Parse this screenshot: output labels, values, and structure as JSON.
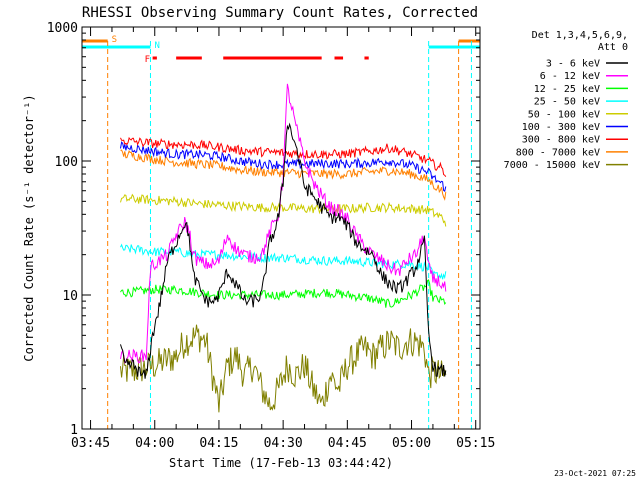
{
  "chart_data": {
    "type": "line",
    "title": "RHESSI Observing Summary Count Rates, Corrected",
    "xlabel": "Start Time (17-Feb-13 03:44:42)",
    "ylabel": "Corrected Count Rate (s⁻¹ detector⁻¹)",
    "y_scale": "log",
    "ylim": [
      1,
      1000
    ],
    "xlim_minutes": [
      -2,
      91
    ],
    "x_tick_labels": [
      "03:45",
      "04:00",
      "04:15",
      "04:30",
      "04:45",
      "05:00",
      "05:15"
    ],
    "x_tick_minutes": [
      0,
      15,
      30,
      45,
      60,
      75,
      90
    ],
    "y_tick_labels": [
      "1",
      "10",
      "100",
      "1000"
    ],
    "y_tick_values": [
      1,
      10,
      100,
      1000
    ],
    "grid": false,
    "legend_position": "right",
    "legend_header": [
      "Det 1,3,4,5,6,9,",
      "Att 0"
    ],
    "timestamp": "23-Oct-2021 07:25",
    "data_start_minute": 7,
    "data_end_minute": 83,
    "state_bars": [
      {
        "label": "S",
        "color": "#ff8000",
        "segments": [
          [
            -2,
            4
          ],
          [
            86,
            91
          ]
        ]
      },
      {
        "label": "N",
        "color": "#00ffff",
        "segments": [
          [
            -2,
            14
          ],
          [
            79,
            91
          ]
        ]
      },
      {
        "label": "F",
        "color": "#ff0000",
        "segments": [
          [
            14.5,
            15.5
          ],
          [
            20,
            26
          ],
          [
            31,
            54
          ],
          [
            57,
            59
          ],
          [
            64,
            65
          ]
        ]
      }
    ],
    "vertical_markers": [
      {
        "minute": 4,
        "color": "#ff8000"
      },
      {
        "minute": 14,
        "color": "#00ffff"
      },
      {
        "minute": 79,
        "color": "#00ffff"
      },
      {
        "minute": 86,
        "color": "#ff8000"
      },
      {
        "minute": 89,
        "color": "#00ffff"
      }
    ],
    "series": [
      {
        "name": "3 - 6 keV",
        "color": "#000000",
        "x": [
          7,
          8,
          10,
          12,
          13,
          14,
          15,
          16,
          17,
          18,
          20,
          22,
          23,
          24,
          25,
          27,
          29,
          30,
          32,
          34,
          36,
          38,
          40,
          42,
          43,
          44,
          45,
          46,
          48,
          50,
          52,
          54,
          56,
          58,
          60,
          62,
          64,
          66,
          68,
          70,
          72,
          74,
          76,
          78,
          79,
          80,
          81,
          82,
          83
        ],
        "y": [
          4,
          3,
          3,
          2.5,
          2.5,
          4,
          6,
          8,
          12,
          18,
          25,
          35,
          28,
          14,
          12,
          9,
          9,
          10,
          15,
          12,
          9,
          9,
          10,
          26,
          30,
          40,
          70,
          200,
          130,
          65,
          55,
          45,
          38,
          38,
          33,
          25,
          22,
          20,
          14,
          12,
          11,
          13,
          16,
          25,
          5,
          3,
          2.7,
          2.7,
          2.7
        ]
      },
      {
        "name": "6 - 12 keV",
        "color": "#ff00ff",
        "x": [
          7,
          8,
          10,
          12,
          13,
          14,
          16,
          18,
          20,
          22,
          23,
          24,
          25,
          27,
          29,
          30,
          32,
          34,
          36,
          38,
          40,
          42,
          43,
          44,
          45,
          46,
          48,
          50,
          52,
          54,
          56,
          58,
          60,
          62,
          64,
          66,
          68,
          70,
          72,
          74,
          76,
          78,
          79,
          80,
          81,
          82,
          83
        ],
        "y": [
          3.5,
          3.5,
          3.5,
          3.5,
          3.5,
          16,
          18,
          20,
          28,
          35,
          30,
          20,
          18,
          17,
          17,
          18,
          28,
          22,
          20,
          19,
          20,
          30,
          35,
          40,
          80,
          350,
          180,
          100,
          70,
          55,
          45,
          42,
          37,
          28,
          23,
          20,
          18,
          16,
          15,
          18,
          20,
          28,
          16,
          13,
          13,
          12,
          11
        ]
      },
      {
        "name": "12 - 25 keV",
        "color": "#00ff00",
        "x": [
          7,
          10,
          15,
          20,
          25,
          30,
          35,
          40,
          45,
          50,
          55,
          60,
          65,
          70,
          75,
          79,
          80,
          82,
          83
        ],
        "y": [
          10.5,
          10.5,
          11,
          11,
          10.5,
          10,
          10,
          10,
          10,
          10.2,
          10.5,
          10,
          9.5,
          8.5,
          10,
          12,
          9.5,
          9,
          9
        ]
      },
      {
        "name": "25 - 50 keV",
        "color": "#00ffff",
        "x": [
          7,
          10,
          15,
          20,
          25,
          30,
          35,
          40,
          45,
          50,
          55,
          60,
          65,
          70,
          75,
          79,
          80,
          82,
          83
        ],
        "y": [
          22,
          22,
          21,
          21,
          20,
          20,
          19.5,
          19,
          19,
          18.5,
          18,
          18,
          17.5,
          17,
          17,
          16,
          14,
          14,
          14
        ]
      },
      {
        "name": "50 - 100 keV",
        "color": "#cccc00",
        "x": [
          7,
          10,
          15,
          20,
          25,
          30,
          35,
          40,
          45,
          50,
          55,
          60,
          65,
          70,
          75,
          79,
          80,
          82,
          83
        ],
        "y": [
          52,
          52,
          51,
          50,
          48,
          47,
          46,
          45,
          45,
          44,
          44,
          44,
          45,
          45,
          44,
          43,
          41,
          38,
          35
        ]
      },
      {
        "name": "100 - 300 keV",
        "color": "#0000ff",
        "x": [
          7,
          10,
          15,
          20,
          25,
          30,
          35,
          40,
          45,
          50,
          55,
          60,
          65,
          70,
          75,
          79,
          80,
          82,
          83
        ],
        "y": [
          128,
          125,
          118,
          112,
          112,
          108,
          100,
          95,
          94,
          95,
          96,
          95,
          97,
          100,
          92,
          82,
          75,
          68,
          62
        ]
      },
      {
        "name": "300 - 800 keV",
        "color": "#ff0000",
        "x": [
          7,
          10,
          15,
          20,
          25,
          30,
          35,
          40,
          45,
          50,
          55,
          60,
          65,
          70,
          75,
          79,
          80,
          82,
          83
        ],
        "y": [
          142,
          140,
          135,
          133,
          132,
          127,
          120,
          117,
          115,
          113,
          112,
          113,
          118,
          125,
          112,
          100,
          95,
          88,
          80
        ]
      },
      {
        "name": "800 - 7000 keV",
        "color": "#ff8000",
        "x": [
          7,
          10,
          15,
          20,
          25,
          30,
          35,
          40,
          45,
          50,
          55,
          60,
          65,
          70,
          75,
          79,
          80,
          82,
          83
        ],
        "y": [
          113,
          110,
          103,
          98,
          95,
          92,
          86,
          83,
          82,
          81,
          80,
          80,
          83,
          85,
          80,
          72,
          67,
          60,
          55
        ]
      },
      {
        "name": "7000 - 15000 keV",
        "color": "#808000",
        "x": [
          7,
          10,
          15,
          20,
          22,
          25,
          27,
          28,
          30,
          32,
          34,
          36,
          38,
          40,
          42,
          44,
          46,
          48,
          50,
          52,
          54,
          56,
          58,
          60,
          62,
          64,
          66,
          68,
          70,
          72,
          74,
          76,
          78,
          79,
          80,
          82,
          83
        ],
        "y": [
          2.7,
          2.7,
          3,
          3.5,
          4.5,
          5,
          4.5,
          3,
          1.5,
          3,
          3.5,
          2.5,
          3,
          2,
          1.5,
          2,
          3,
          2.5,
          3,
          2,
          1.5,
          2.5,
          2,
          3,
          3.5,
          4,
          3.5,
          4,
          4.5,
          4,
          4.5,
          4.5,
          4,
          2.5,
          2.7,
          2.5,
          2.5
        ]
      }
    ]
  }
}
